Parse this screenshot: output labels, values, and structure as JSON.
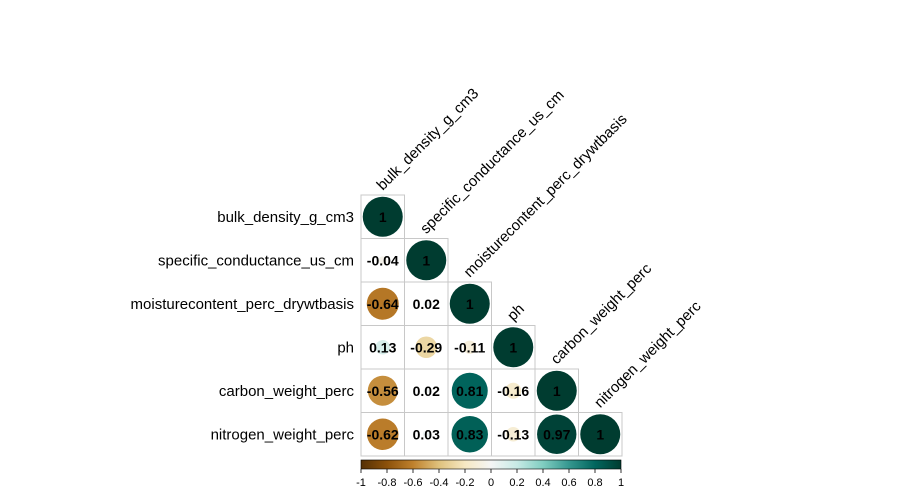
{
  "chart_data": {
    "type": "heatmap",
    "title": "",
    "variables": [
      "bulk_density_g_cm3",
      "specific_conductance_us_cm",
      "moisturecontent_perc_drywtbasis",
      "ph",
      "carbon_weight_perc",
      "nitrogen_weight_perc"
    ],
    "triangle": "lower",
    "matrix": [
      [
        1
      ],
      [
        -0.04,
        1
      ],
      [
        -0.64,
        0.02,
        1
      ],
      [
        0.13,
        -0.29,
        -0.11,
        1
      ],
      [
        -0.56,
        0.02,
        0.81,
        -0.16,
        1
      ],
      [
        -0.62,
        0.03,
        0.83,
        -0.13,
        0.97,
        1
      ]
    ],
    "labels": [
      [
        "1"
      ],
      [
        "-0.04",
        "1"
      ],
      [
        "-0.64",
        "0.02",
        "1"
      ],
      [
        "0.13",
        "-0.29",
        "-0.11",
        "1"
      ],
      [
        "-0.56",
        "0.02",
        "0.81",
        "-0.16",
        "1"
      ],
      [
        "-0.62",
        "0.03",
        "0.83",
        "-0.13",
        "0.97",
        "1"
      ]
    ],
    "colorbar": {
      "range": [
        -1,
        1
      ],
      "ticks": [
        "-1",
        "-0.8",
        "-0.6",
        "-0.4",
        "-0.2",
        "0",
        "0.2",
        "0.4",
        "0.6",
        "0.8",
        "1"
      ],
      "palette": [
        "#543005",
        "#8c510a",
        "#bf812d",
        "#dfc27d",
        "#f6e8c3",
        "#f5f5f5",
        "#c7eae5",
        "#80cdc1",
        "#35978f",
        "#01665e",
        "#003c30"
      ]
    },
    "legend": "bottom"
  }
}
